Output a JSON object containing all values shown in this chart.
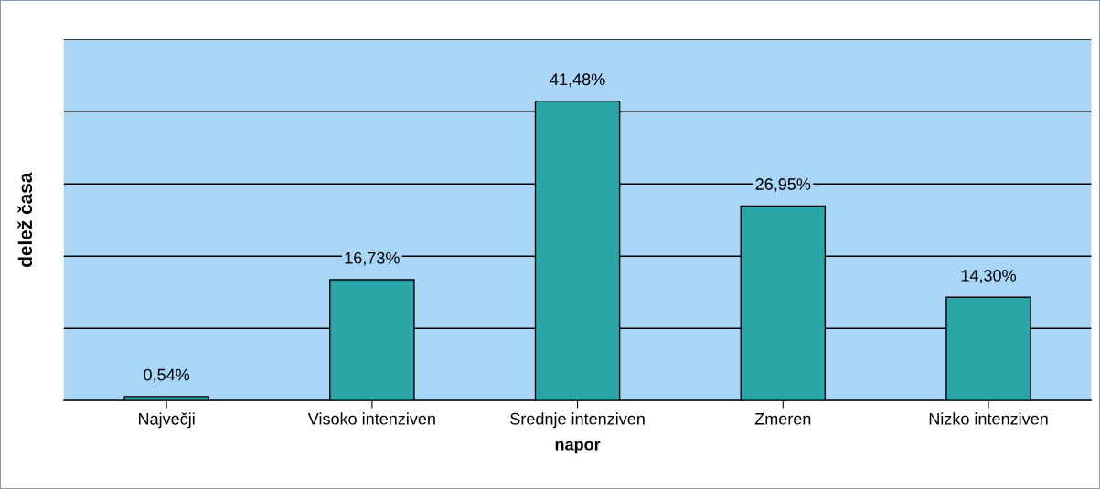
{
  "chart_data": {
    "type": "bar",
    "xlabel": "napor",
    "ylabel": "delež časa",
    "categories": [
      "Največji",
      "Visoko intenziven",
      "Srednje intenziven",
      "Zmeren",
      "Nizko intenziven"
    ],
    "values": [
      0.54,
      16.73,
      41.48,
      26.95,
      14.3
    ],
    "value_labels": [
      "0,54%",
      "16,73%",
      "41,48%",
      "26,95%",
      "14,30%"
    ],
    "color": "#2ba5a8",
    "ylim": [
      0,
      50
    ],
    "yticks": [
      {
        "value": 0,
        "label": null
      },
      {
        "value": 10,
        "label": null
      },
      {
        "value": 20,
        "label": null
      },
      {
        "value": 30,
        "label": null
      },
      {
        "value": 40,
        "label": null
      },
      {
        "value": 50,
        "label": null
      }
    ],
    "grid": "y",
    "tick_labels": "x"
  }
}
